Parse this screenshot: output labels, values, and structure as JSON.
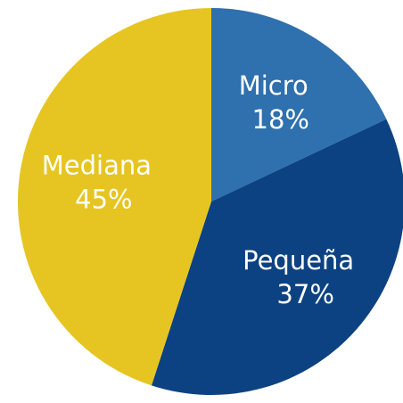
{
  "chart_data": {
    "type": "pie",
    "categories": [
      "Micro",
      "Pequeña",
      "Mediana"
    ],
    "values": [
      18,
      37,
      45
    ],
    "value_labels": [
      "18%",
      "37%",
      "45%"
    ],
    "colors": [
      "#2f70ae",
      "#0c4282",
      "#e6c522"
    ],
    "start_angle": "top",
    "direction": "clockwise"
  }
}
